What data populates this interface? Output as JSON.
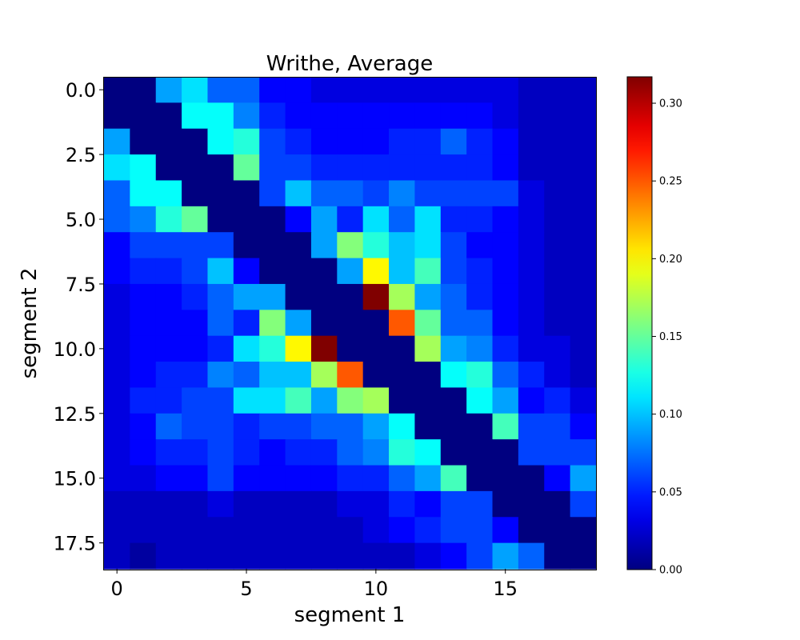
{
  "chart_data": {
    "type": "heatmap",
    "title": "Writhe, Average",
    "xlabel": "segment 1",
    "ylabel": "segment 2",
    "x_ticks": [
      0,
      5,
      10,
      15
    ],
    "x_tick_labels": [
      "0",
      "5",
      "10",
      "15"
    ],
    "y_ticks": [
      0.0,
      2.5,
      5.0,
      7.5,
      10.0,
      12.5,
      15.0,
      17.5
    ],
    "y_tick_labels": [
      "0.0",
      "2.5",
      "5.0",
      "7.5",
      "10.0",
      "12.5",
      "15.0",
      "17.5"
    ],
    "colormap": "jet",
    "colorbar": {
      "range": [
        0.0,
        0.317
      ],
      "ticks": [
        0.0,
        0.05,
        0.1,
        0.15,
        0.2,
        0.25,
        0.3
      ],
      "tick_labels": [
        "0.00",
        "0.05",
        "0.10",
        "0.15",
        "0.20",
        "0.25",
        "0.30"
      ]
    },
    "values": [
      [
        0.0,
        0.0,
        0.09,
        0.11,
        0.07,
        0.07,
        0.04,
        0.04,
        0.03,
        0.03,
        0.03,
        0.03,
        0.03,
        0.03,
        0.03,
        0.03,
        0.02,
        0.02,
        0.02
      ],
      [
        0.0,
        0.0,
        0.0,
        0.12,
        0.12,
        0.08,
        0.05,
        0.04,
        0.04,
        0.04,
        0.04,
        0.04,
        0.04,
        0.04,
        0.04,
        0.03,
        0.02,
        0.02,
        0.02
      ],
      [
        0.09,
        0.0,
        0.0,
        0.0,
        0.12,
        0.13,
        0.06,
        0.05,
        0.04,
        0.04,
        0.04,
        0.05,
        0.05,
        0.07,
        0.05,
        0.04,
        0.02,
        0.02,
        0.02
      ],
      [
        0.11,
        0.12,
        0.0,
        0.0,
        0.0,
        0.15,
        0.06,
        0.06,
        0.05,
        0.05,
        0.05,
        0.05,
        0.05,
        0.05,
        0.05,
        0.04,
        0.02,
        0.02,
        0.02
      ],
      [
        0.07,
        0.12,
        0.12,
        0.0,
        0.0,
        0.0,
        0.06,
        0.1,
        0.07,
        0.07,
        0.06,
        0.08,
        0.06,
        0.06,
        0.06,
        0.06,
        0.03,
        0.02,
        0.02
      ],
      [
        0.07,
        0.08,
        0.13,
        0.15,
        0.0,
        0.0,
        0.0,
        0.04,
        0.09,
        0.05,
        0.11,
        0.07,
        0.11,
        0.05,
        0.05,
        0.04,
        0.03,
        0.02,
        0.02
      ],
      [
        0.04,
        0.06,
        0.06,
        0.06,
        0.06,
        0.0,
        0.0,
        0.0,
        0.09,
        0.16,
        0.13,
        0.1,
        0.11,
        0.06,
        0.04,
        0.04,
        0.03,
        0.02,
        0.02
      ],
      [
        0.04,
        0.05,
        0.05,
        0.06,
        0.1,
        0.04,
        0.0,
        0.0,
        0.0,
        0.09,
        0.2,
        0.1,
        0.14,
        0.06,
        0.05,
        0.04,
        0.03,
        0.02,
        0.02
      ],
      [
        0.03,
        0.04,
        0.04,
        0.05,
        0.07,
        0.09,
        0.09,
        0.0,
        0.0,
        0.0,
        0.317,
        0.17,
        0.09,
        0.07,
        0.05,
        0.04,
        0.03,
        0.02,
        0.02
      ],
      [
        0.03,
        0.04,
        0.04,
        0.04,
        0.07,
        0.05,
        0.16,
        0.09,
        0.0,
        0.0,
        0.0,
        0.25,
        0.15,
        0.07,
        0.07,
        0.04,
        0.03,
        0.02,
        0.02
      ],
      [
        0.03,
        0.04,
        0.04,
        0.04,
        0.05,
        0.11,
        0.13,
        0.2,
        0.317,
        0.0,
        0.0,
        0.0,
        0.17,
        0.09,
        0.08,
        0.05,
        0.03,
        0.03,
        0.02
      ],
      [
        0.03,
        0.04,
        0.05,
        0.05,
        0.08,
        0.07,
        0.1,
        0.1,
        0.17,
        0.25,
        0.0,
        0.0,
        0.0,
        0.12,
        0.13,
        0.07,
        0.05,
        0.03,
        0.02
      ],
      [
        0.03,
        0.05,
        0.05,
        0.06,
        0.06,
        0.11,
        0.11,
        0.14,
        0.09,
        0.16,
        0.17,
        0.0,
        0.0,
        0.0,
        0.12,
        0.09,
        0.04,
        0.05,
        0.03
      ],
      [
        0.03,
        0.04,
        0.07,
        0.06,
        0.06,
        0.05,
        0.06,
        0.06,
        0.07,
        0.07,
        0.09,
        0.12,
        0.0,
        0.0,
        0.0,
        0.14,
        0.06,
        0.06,
        0.04
      ],
      [
        0.03,
        0.04,
        0.05,
        0.05,
        0.06,
        0.05,
        0.04,
        0.05,
        0.05,
        0.07,
        0.08,
        0.13,
        0.12,
        0.0,
        0.0,
        0.0,
        0.06,
        0.06,
        0.06
      ],
      [
        0.03,
        0.03,
        0.04,
        0.04,
        0.06,
        0.04,
        0.04,
        0.04,
        0.04,
        0.05,
        0.05,
        0.07,
        0.09,
        0.14,
        0.0,
        0.0,
        0.0,
        0.04,
        0.09
      ],
      [
        0.02,
        0.02,
        0.02,
        0.02,
        0.03,
        0.02,
        0.02,
        0.02,
        0.02,
        0.03,
        0.03,
        0.05,
        0.04,
        0.06,
        0.06,
        0.0,
        0.0,
        0.0,
        0.06
      ],
      [
        0.02,
        0.02,
        0.02,
        0.02,
        0.02,
        0.02,
        0.02,
        0.02,
        0.02,
        0.02,
        0.03,
        0.04,
        0.05,
        0.06,
        0.06,
        0.04,
        0.0,
        0.0,
        0.0
      ],
      [
        0.02,
        0.01,
        0.02,
        0.02,
        0.02,
        0.02,
        0.02,
        0.02,
        0.02,
        0.02,
        0.02,
        0.02,
        0.03,
        0.04,
        0.06,
        0.09,
        0.07,
        0.0,
        0.0
      ]
    ]
  }
}
